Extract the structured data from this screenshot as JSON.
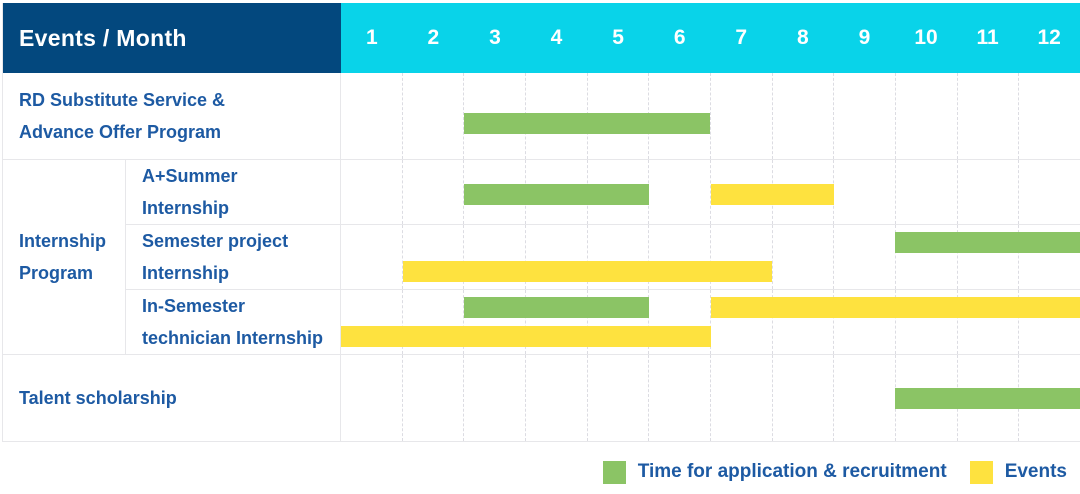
{
  "header": {
    "title": "Events / Month",
    "months": [
      "1",
      "2",
      "3",
      "4",
      "5",
      "6",
      "7",
      "8",
      "9",
      "10",
      "11",
      "12"
    ]
  },
  "colors": {
    "header_bg": "#03487E",
    "month_header_bg": "#09D3E9",
    "application_green": "#8BC465",
    "events_yellow": "#FEE23F",
    "label_text": "#1D5AA3",
    "header_text": "#FFFFFF"
  },
  "chart_data": {
    "type": "gantt",
    "x_label": "Month",
    "x_range": [
      1,
      12
    ],
    "x_ticks": [
      "1",
      "2",
      "3",
      "4",
      "5",
      "6",
      "7",
      "8",
      "9",
      "10",
      "11",
      "12"
    ],
    "rows": [
      {
        "kind": "simple",
        "label_lines": [
          "RD Substitute Service &",
          "Advance Offer Program"
        ],
        "bars": [
          {
            "series": "application",
            "start_month": 3,
            "end_month": 6,
            "line": "single",
            "dy": 7
          }
        ]
      },
      {
        "kind": "group",
        "label_lines": [
          "Internship",
          "Program"
        ],
        "children": [
          {
            "label_lines": [
              "A+Summer",
              "Internship"
            ],
            "bars": [
              {
                "series": "application",
                "start_month": 3,
                "end_month": 5,
                "line": "single",
                "dy": 2
              },
              {
                "series": "events",
                "start_month": 7,
                "end_month": 8,
                "line": "single",
                "dy": 2
              }
            ]
          },
          {
            "label_lines": [
              "Semester project",
              "Internship"
            ],
            "bars": [
              {
                "series": "application",
                "start_month": 10,
                "end_month": 12,
                "line": "top",
                "dy": 0
              },
              {
                "series": "events",
                "start_month": 2,
                "end_month": 7,
                "line": "bottom",
                "dy": 0
              }
            ]
          },
          {
            "label_lines": [
              "In-Semester",
              "technician Internship"
            ],
            "bars": [
              {
                "series": "application",
                "start_month": 3,
                "end_month": 5,
                "line": "top",
                "dy": 0
              },
              {
                "series": "events",
                "start_month": 7,
                "end_month": 12,
                "line": "top",
                "dy": 0
              },
              {
                "series": "events",
                "start_month": 1,
                "end_month": 6,
                "line": "bottom",
                "dy": 0
              }
            ]
          }
        ]
      },
      {
        "kind": "simple",
        "label_lines": [
          "Talent scholarship"
        ],
        "bars": [
          {
            "series": "application",
            "start_month": 10,
            "end_month": 12,
            "line": "single",
            "dy": 0
          }
        ]
      }
    ],
    "legend": [
      {
        "series": "application",
        "label": "Time for application & recruitment"
      },
      {
        "series": "events",
        "label": "Events"
      }
    ]
  }
}
